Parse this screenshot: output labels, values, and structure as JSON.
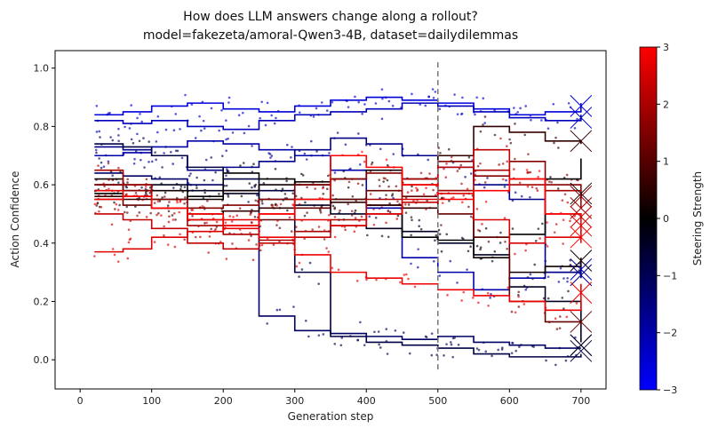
{
  "chart_data": {
    "type": "line",
    "title": "How does LLM answers change along a rollout?",
    "subtitle": "model=fakezeta/amoral-Qwen3-4B, dataset=dailydilemmas",
    "xlabel": "Generation step",
    "ylabel": "Action Confidence",
    "xlim": [
      -35,
      735
    ],
    "ylim": [
      -0.1,
      1.06
    ],
    "xticks": [
      "0",
      "100",
      "200",
      "300",
      "400",
      "500",
      "600",
      "700"
    ],
    "yticks": [
      "0.0",
      "0.2",
      "0.4",
      "0.6",
      "0.8",
      "1.0"
    ],
    "vline": {
      "x": 500,
      "style": "dashed",
      "color": "#777777"
    },
    "colorbar": {
      "label": "Steering Strength",
      "min": -3,
      "max": 3,
      "ticks": [
        "-3",
        "-2",
        "-1",
        "0",
        "1",
        "2",
        "3"
      ],
      "colors": [
        "#0000ff",
        "#000000",
        "#ff0000"
      ]
    },
    "grid": false,
    "series": [
      {
        "steer": -2.6,
        "x": [
          20,
          60,
          100,
          150,
          200,
          250,
          300,
          350,
          400,
          450,
          500,
          550,
          600,
          650,
          700
        ],
        "y": [
          0.84,
          0.85,
          0.87,
          0.88,
          0.86,
          0.85,
          0.87,
          0.89,
          0.9,
          0.89,
          0.88,
          0.86,
          0.84,
          0.85,
          0.88
        ],
        "end": 0.87
      },
      {
        "steer": -2.2,
        "x": [
          20,
          60,
          100,
          150,
          200,
          250,
          300,
          350,
          400,
          450,
          500,
          550,
          600,
          650,
          700
        ],
        "y": [
          0.82,
          0.81,
          0.82,
          0.8,
          0.79,
          0.82,
          0.84,
          0.85,
          0.86,
          0.88,
          0.87,
          0.85,
          0.83,
          0.82,
          0.84
        ],
        "end": 0.83
      },
      {
        "steer": -2.0,
        "x": [
          20,
          60,
          100,
          150,
          200,
          250,
          300,
          350,
          400,
          450,
          500,
          550,
          600,
          650,
          700
        ],
        "y": [
          0.7,
          0.71,
          0.73,
          0.75,
          0.74,
          0.72,
          0.7,
          0.65,
          0.52,
          0.35,
          0.3,
          0.24,
          0.28,
          0.3,
          0.32
        ],
        "end": 0.31
      },
      {
        "steer": -1.6,
        "x": [
          20,
          60,
          100,
          150,
          200,
          250,
          300,
          350,
          400,
          450,
          500,
          550,
          600,
          650,
          700
        ],
        "y": [
          0.73,
          0.72,
          0.7,
          0.65,
          0.66,
          0.68,
          0.72,
          0.76,
          0.74,
          0.7,
          0.66,
          0.6,
          0.55,
          0.3,
          0.28
        ],
        "end": 0.29
      },
      {
        "steer": -1.2,
        "x": [
          20,
          60,
          100,
          150,
          200,
          250,
          300,
          350,
          400,
          450,
          500,
          550,
          600,
          650,
          700
        ],
        "y": [
          0.64,
          0.63,
          0.62,
          0.6,
          0.58,
          0.15,
          0.1,
          0.09,
          0.08,
          0.07,
          0.08,
          0.06,
          0.05,
          0.04,
          0.04
        ],
        "end": 0.05
      },
      {
        "steer": -0.8,
        "x": [
          20,
          60,
          100,
          150,
          200,
          250,
          300,
          350,
          400,
          450,
          500,
          550,
          600,
          650,
          700
        ],
        "y": [
          0.74,
          0.73,
          0.7,
          0.66,
          0.62,
          0.58,
          0.3,
          0.08,
          0.06,
          0.05,
          0.04,
          0.02,
          0.01,
          0.01,
          0.02
        ],
        "end": 0.03
      },
      {
        "steer": -0.4,
        "x": [
          20,
          60,
          100,
          150,
          200,
          250,
          300,
          350,
          400,
          450,
          500,
          550,
          600,
          650,
          700
        ],
        "y": [
          0.6,
          0.58,
          0.6,
          0.58,
          0.57,
          0.55,
          0.53,
          0.5,
          0.45,
          0.44,
          0.4,
          0.36,
          0.25,
          0.2,
          0.06
        ],
        "end": 0.05
      },
      {
        "steer": 0.0,
        "x": [
          20,
          60,
          100,
          150,
          200,
          250,
          300,
          350,
          400,
          450,
          500,
          550,
          600,
          650,
          700
        ],
        "y": [
          0.57,
          0.56,
          0.55,
          0.56,
          0.64,
          0.62,
          0.6,
          0.55,
          0.53,
          0.42,
          0.41,
          0.42,
          0.43,
          0.62,
          0.69
        ],
        "end": 0.57
      },
      {
        "steer": 0.2,
        "x": [
          20,
          60,
          100,
          150,
          200,
          250,
          300,
          350,
          400,
          450,
          500,
          550,
          600,
          650,
          700
        ],
        "y": [
          0.62,
          0.6,
          0.58,
          0.55,
          0.58,
          0.6,
          0.61,
          0.62,
          0.65,
          0.62,
          0.58,
          0.35,
          0.3,
          0.32,
          0.35
        ],
        "end": 0.34
      },
      {
        "steer": 0.6,
        "x": [
          20,
          60,
          100,
          150,
          200,
          250,
          300,
          350,
          400,
          450,
          500,
          550,
          600,
          650,
          700
        ],
        "y": [
          0.56,
          0.55,
          0.52,
          0.5,
          0.51,
          0.52,
          0.55,
          0.54,
          0.53,
          0.52,
          0.7,
          0.8,
          0.78,
          0.75,
          0.74
        ],
        "end": 0.75
      },
      {
        "steer": 1.2,
        "x": [
          20,
          60,
          100,
          150,
          200,
          250,
          300,
          350,
          400,
          450,
          500,
          550,
          600,
          650,
          700
        ],
        "y": [
          0.55,
          0.53,
          0.52,
          0.48,
          0.46,
          0.48,
          0.52,
          0.55,
          0.58,
          0.56,
          0.5,
          0.42,
          0.2,
          0.13,
          0.12
        ],
        "end": 0.13
      },
      {
        "steer": 1.6,
        "x": [
          20,
          60,
          100,
          150,
          200,
          250,
          300,
          350,
          400,
          450,
          500,
          550,
          600,
          650,
          700
        ],
        "y": [
          0.6,
          0.58,
          0.55,
          0.52,
          0.53,
          0.55,
          0.6,
          0.62,
          0.64,
          0.6,
          0.68,
          0.63,
          0.68,
          0.6,
          0.55
        ],
        "end": 0.56
      },
      {
        "steer": 2.0,
        "x": [
          20,
          60,
          100,
          150,
          200,
          250,
          300,
          350,
          400,
          450,
          500,
          550,
          600,
          650,
          700
        ],
        "y": [
          0.65,
          0.6,
          0.52,
          0.46,
          0.43,
          0.41,
          0.44,
          0.48,
          0.55,
          0.62,
          0.58,
          0.65,
          0.6,
          0.58,
          0.52
        ],
        "end": 0.52
      },
      {
        "steer": 2.3,
        "x": [
          20,
          60,
          100,
          150,
          200,
          250,
          300,
          350,
          400,
          450,
          500,
          550,
          600,
          650,
          700
        ],
        "y": [
          0.5,
          0.48,
          0.45,
          0.4,
          0.38,
          0.4,
          0.42,
          0.46,
          0.5,
          0.54,
          0.66,
          0.72,
          0.62,
          0.5,
          0.49
        ],
        "end": 0.49
      },
      {
        "steer": 2.6,
        "x": [
          20,
          60,
          100,
          150,
          200,
          250,
          300,
          350,
          400,
          450,
          500,
          550,
          600,
          650,
          700
        ],
        "y": [
          0.37,
          0.38,
          0.42,
          0.44,
          0.48,
          0.5,
          0.48,
          0.46,
          0.5,
          0.55,
          0.57,
          0.48,
          0.4,
          0.42,
          0.45
        ],
        "end": 0.46
      },
      {
        "steer": 2.8,
        "x": [
          20,
          60,
          100,
          150,
          200,
          250,
          300,
          350,
          400,
          450,
          500,
          550,
          600,
          650,
          700
        ],
        "y": [
          0.58,
          0.56,
          0.52,
          0.48,
          0.45,
          0.42,
          0.36,
          0.3,
          0.28,
          0.26,
          0.24,
          0.22,
          0.2,
          0.17,
          0.26
        ],
        "end": 0.23
      },
      {
        "steer": 3.0,
        "x": [
          20,
          60,
          100,
          150,
          200,
          250,
          300,
          350,
          400,
          450,
          500,
          550,
          600,
          650,
          700
        ],
        "y": [
          0.55,
          0.56,
          0.52,
          0.5,
          0.46,
          0.5,
          0.55,
          0.7,
          0.66,
          0.6,
          0.55,
          0.58,
          0.62,
          0.5,
          0.4
        ],
        "end": 0.42
      }
    ]
  }
}
